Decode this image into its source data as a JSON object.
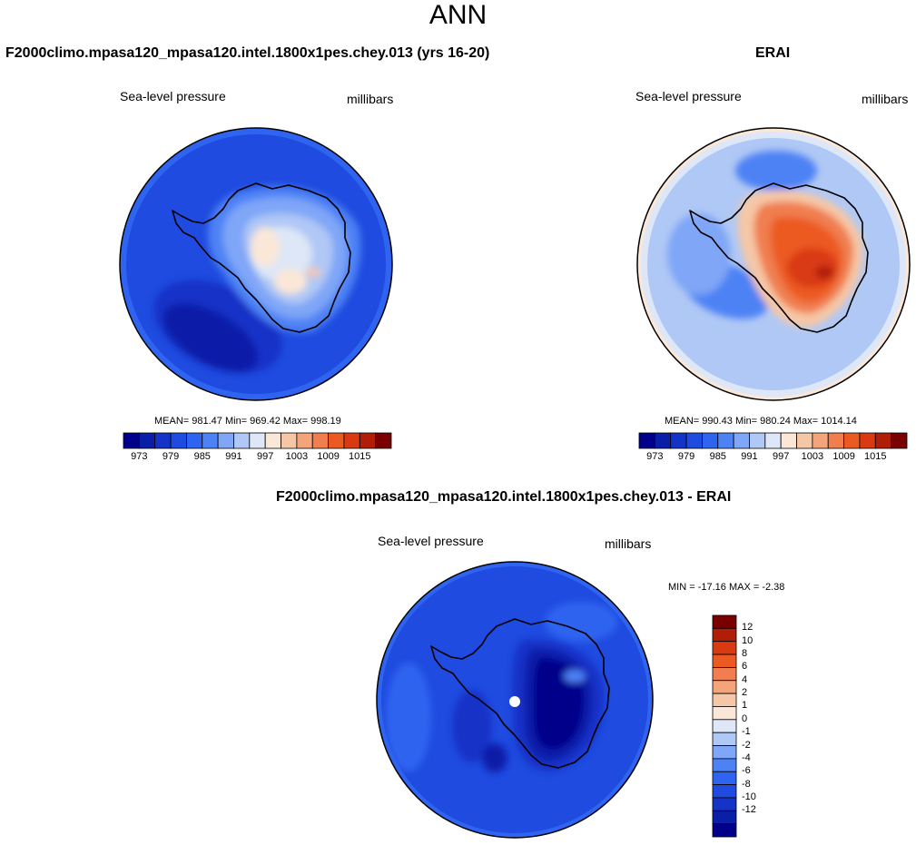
{
  "page_title": "ANN",
  "panels": [
    {
      "title": "F2000climo.mpasa120_mpasa120.intel.1800x1pes.chey.013 (yrs 16-20)",
      "variable": "Sea-level pressure",
      "units": "millibars",
      "stats": "MEAN= 981.47  Min= 969.42  Max= 998.19"
    },
    {
      "title": "ERAI",
      "variable": "Sea-level pressure",
      "units": "millibars",
      "stats": "MEAN= 990.43  Min= 980.24  Max= 1014.14"
    },
    {
      "title": "F2000climo.mpasa120_mpasa120.intel.1800x1pes.chey.013 - ERAI",
      "variable": "Sea-level pressure",
      "units": "millibars",
      "stats": "MIN = -17.16 MAX =  -2.38"
    }
  ],
  "abs_colorbar": {
    "colors": [
      "#00008b",
      "#0a1fa8",
      "#1533c7",
      "#1f4be0",
      "#2f64f0",
      "#4d82f5",
      "#7fa6f7",
      "#b0c8f5",
      "#dde7f7",
      "#fbe7d7",
      "#f6c7a6",
      "#f3a47a",
      "#f07e4f",
      "#ec5a24",
      "#d93a12",
      "#b01e08",
      "#7a0000"
    ],
    "tick_labels": [
      "973",
      "979",
      "985",
      "991",
      "997",
      "1003",
      "1009",
      "1015"
    ]
  },
  "diff_colorbar": {
    "colors": [
      "#7a0000",
      "#b01e08",
      "#d93a12",
      "#ec5a24",
      "#f07e4f",
      "#f3a47a",
      "#f6c7a6",
      "#fbe7d7",
      "#dde7f7",
      "#b0c8f5",
      "#7fa6f7",
      "#4d82f5",
      "#2f64f0",
      "#1f4be0",
      "#1533c7",
      "#0a1fa8",
      "#00008b"
    ],
    "tick_labels": [
      "12",
      "10",
      "8",
      "6",
      "4",
      "2",
      "1",
      "0",
      "-1",
      "-2",
      "-4",
      "-6",
      "-8",
      "-10",
      "-12"
    ]
  },
  "chart_data": [
    {
      "type": "heatmap",
      "title": "F2000climo.mpasa120_mpasa120.intel.1800x1pes.chey.013 (yrs 16-20)",
      "variable": "Sea-level pressure",
      "units": "millibars",
      "projection": "south polar stereographic",
      "mean": 981.47,
      "min": 969.42,
      "max": 998.19,
      "contour_levels": [
        973,
        976,
        979,
        982,
        985,
        988,
        991,
        994,
        997,
        1000,
        1003,
        1006,
        1009,
        1012,
        1015
      ]
    },
    {
      "type": "heatmap",
      "title": "ERAI",
      "variable": "Sea-level pressure",
      "units": "millibars",
      "projection": "south polar stereographic",
      "mean": 990.43,
      "min": 980.24,
      "max": 1014.14,
      "contour_levels": [
        973,
        976,
        979,
        982,
        985,
        988,
        991,
        994,
        997,
        1000,
        1003,
        1006,
        1009,
        1012,
        1015
      ]
    },
    {
      "type": "heatmap",
      "title": "F2000climo.mpasa120_mpasa120.intel.1800x1pes.chey.013 - ERAI",
      "variable": "Sea-level pressure",
      "units": "millibars",
      "projection": "south polar stereographic",
      "min": -17.16,
      "max": -2.38,
      "contour_levels": [
        -12,
        -10,
        -8,
        -6,
        -4,
        -2,
        -1,
        0,
        1,
        2,
        4,
        6,
        8,
        10,
        12
      ]
    }
  ]
}
